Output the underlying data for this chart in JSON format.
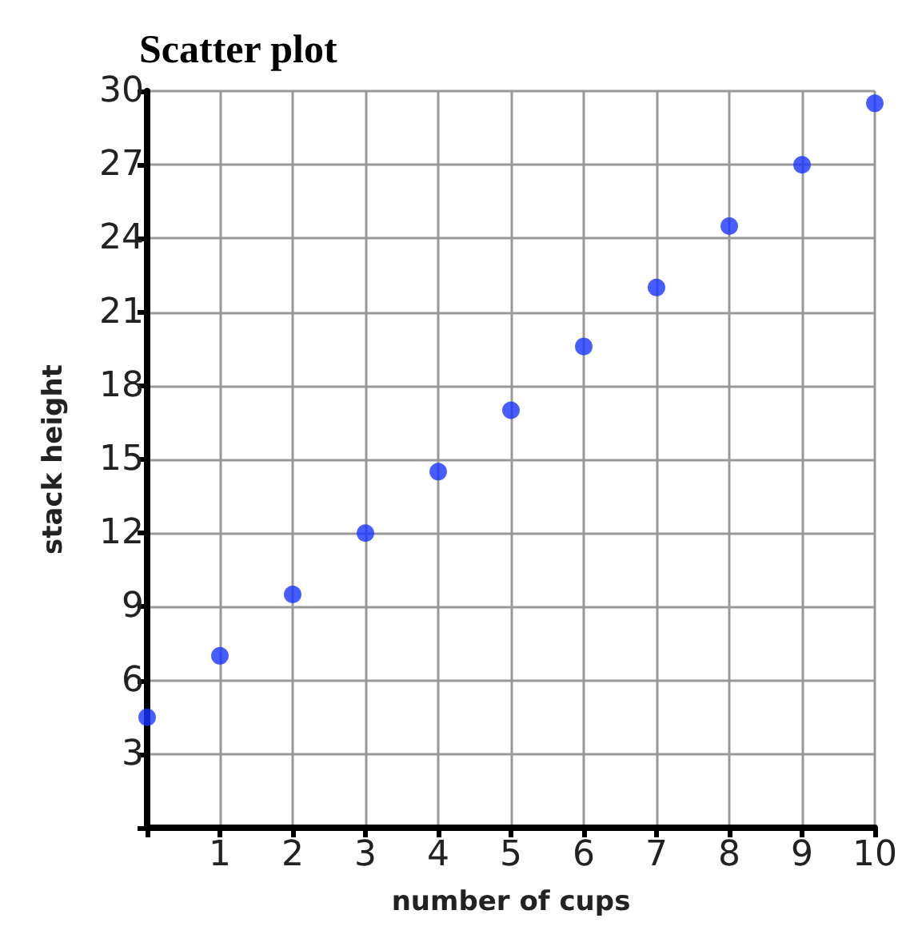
{
  "chart_data": {
    "type": "scatter",
    "title": "Scatter plot",
    "xlabel": "number of cups",
    "ylabel": "stack height",
    "x": [
      0,
      1,
      2,
      3,
      4,
      5,
      6,
      7,
      8,
      9,
      10
    ],
    "series": [
      {
        "color": "#1a35ff",
        "values": [
          4.5,
          7,
          9.5,
          12,
          14.5,
          17,
          19.6,
          22,
          24.5,
          27,
          29.5
        ]
      }
    ],
    "xlim": [
      0,
      10
    ],
    "ylim": [
      0,
      30
    ],
    "xticks": [
      {
        "value": 0,
        "label": null
      },
      1,
      2,
      3,
      4,
      5,
      6,
      7,
      8,
      9,
      10
    ],
    "yticks": [
      {
        "value": 0,
        "label": null
      },
      3,
      6,
      9,
      12,
      15,
      18,
      21,
      24,
      27,
      30
    ],
    "grid": true,
    "marker": "circle"
  }
}
